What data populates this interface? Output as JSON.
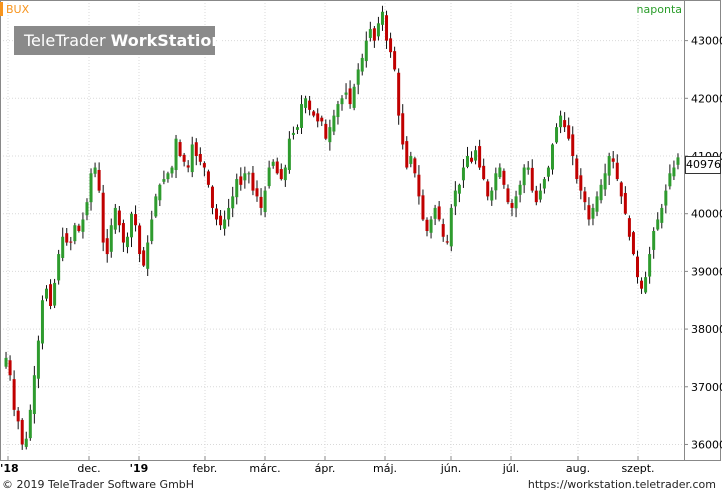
{
  "ticker": "BUX",
  "frequency": "naponta",
  "logo": {
    "brand": "TeleTrader",
    "product": "WorkStation"
  },
  "footer": {
    "copyright": "© 2019 TeleTrader Software GmbH",
    "url": "https://workstation.teletrader.com"
  },
  "colors": {
    "up": "#2e9b2e",
    "down": "#c00000",
    "grid": "#d9d9d9",
    "accent": "#f7941d"
  },
  "chart_data": {
    "type": "candlestick",
    "ylim": [
      35800,
      43600
    ],
    "y_ticks": [
      36000,
      37000,
      38000,
      39000,
      40000,
      41000,
      42000,
      43000
    ],
    "x_ticks": [
      "'18",
      "dec.",
      "'19",
      "febr.",
      "márc.",
      "ápr.",
      "máj.",
      "jún.",
      "júl.",
      "aug.",
      "szept."
    ],
    "last_value": "40976",
    "grid": true,
    "closes": [
      37500,
      37200,
      36600,
      36400,
      36000,
      36100,
      36600,
      37200,
      37800,
      38500,
      38700,
      38400,
      38800,
      39300,
      39600,
      39500,
      39500,
      39800,
      39700,
      39900,
      40200,
      40700,
      40800,
      40400,
      39500,
      39300,
      39800,
      40100,
      39800,
      39500,
      39600,
      40000,
      39800,
      39300,
      39100,
      39500,
      39900,
      40300,
      40500,
      40600,
      40700,
      40800,
      41300,
      41000,
      40900,
      40800,
      41200,
      41000,
      40900,
      40800,
      40500,
      40100,
      39900,
      39800,
      39900,
      40100,
      40300,
      40600,
      40500,
      40700,
      40700,
      40400,
      40300,
      40100,
      40400,
      40800,
      40900,
      40700,
      40600,
      40800,
      41300,
      41400,
      41500,
      41900,
      42000,
      41800,
      41700,
      41600,
      41600,
      41300,
      41500,
      41700,
      41900,
      42000,
      42100,
      41900,
      42200,
      42500,
      42700,
      43000,
      43200,
      43000,
      43300,
      43500,
      43000,
      42800,
      42500,
      41700,
      41200,
      40800,
      41000,
      40700,
      40300,
      39900,
      39700,
      39900,
      40100,
      39900,
      39600,
      39500,
      40100,
      40400,
      40500,
      40800,
      41000,
      40900,
      41100,
      40800,
      40600,
      40300,
      40400,
      40700,
      40800,
      40500,
      40200,
      40100,
      40300,
      40500,
      40800,
      40800,
      40400,
      40200,
      40400,
      40600,
      40800,
      41200,
      41500,
      41700,
      41500,
      41300,
      41000,
      40600,
      40400,
      40200,
      39900,
      40100,
      40300,
      40500,
      40700,
      41000,
      40900,
      40600,
      40300,
      40000,
      39600,
      39300,
      38900,
      38700,
      38900,
      39300,
      39700,
      39900,
      40100,
      40400,
      40700,
      40800,
      40976
    ]
  }
}
